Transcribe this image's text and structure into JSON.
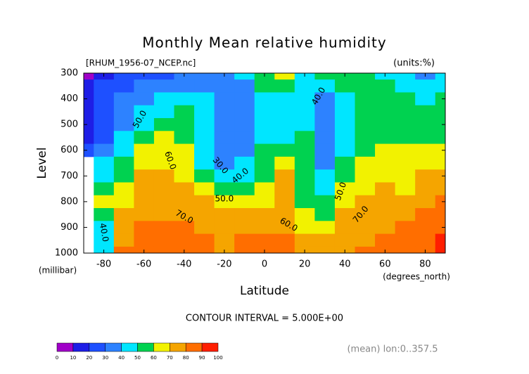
{
  "chart_data": {
    "type": "contour",
    "title": "Monthly Mean relative humidity",
    "subtitle": "[RHUM_1956-07_NCEP.nc]",
    "units": "(units:%)",
    "y_label": "Level",
    "y_unit": "(millibar)",
    "x_label": "Latitude",
    "x_unit": "(degrees_north)",
    "footer": "CONTOUR INTERVAL = 5.000E+00",
    "note": "(mean) lon:0..357.5",
    "x": [
      -90,
      -80,
      -70,
      -60,
      -50,
      -40,
      -30,
      -20,
      -10,
      0,
      10,
      20,
      30,
      40,
      50,
      60,
      70,
      80,
      90
    ],
    "y": [
      300,
      350,
      400,
      450,
      500,
      550,
      600,
      650,
      700,
      750,
      800,
      850,
      900,
      950,
      1000
    ],
    "z": [
      [
        8,
        10,
        20,
        25,
        28,
        32,
        35,
        38,
        42,
        55,
        62,
        48,
        52,
        58,
        58,
        48,
        40,
        35,
        42
      ],
      [
        15,
        22,
        28,
        30,
        35,
        38,
        38,
        35,
        38,
        50,
        55,
        42,
        40,
        52,
        55,
        52,
        48,
        42,
        45
      ],
      [
        18,
        25,
        30,
        35,
        40,
        45,
        42,
        32,
        35,
        48,
        48,
        40,
        35,
        48,
        55,
        55,
        52,
        48,
        52
      ],
      [
        18,
        25,
        33,
        42,
        48,
        50,
        45,
        30,
        33,
        48,
        45,
        42,
        33,
        45,
        55,
        58,
        55,
        55,
        55
      ],
      [
        18,
        25,
        38,
        48,
        55,
        55,
        45,
        30,
        33,
        47,
        45,
        45,
        32,
        42,
        55,
        58,
        57,
        58,
        55
      ],
      [
        18,
        28,
        42,
        55,
        60,
        58,
        45,
        30,
        34,
        48,
        48,
        50,
        33,
        42,
        57,
        58,
        58,
        58,
        58
      ],
      [
        20,
        33,
        46,
        62,
        64,
        60,
        45,
        30,
        36,
        50,
        55,
        55,
        35,
        45,
        58,
        60,
        60,
        62,
        62
      ],
      [
        null,
        40,
        50,
        66,
        68,
        62,
        48,
        32,
        40,
        52,
        62,
        58,
        38,
        50,
        60,
        62,
        63,
        65,
        68
      ],
      [
        null,
        45,
        55,
        70,
        72,
        68,
        55,
        40,
        48,
        55,
        70,
        58,
        40,
        55,
        62,
        65,
        65,
        70,
        72
      ],
      [
        null,
        55,
        62,
        72,
        75,
        72,
        65,
        52,
        55,
        60,
        75,
        58,
        45,
        60,
        65,
        70,
        68,
        74,
        75
      ],
      [
        null,
        60,
        68,
        75,
        76,
        75,
        72,
        65,
        62,
        66,
        76,
        58,
        52,
        65,
        70,
        72,
        72,
        78,
        80
      ],
      [
        null,
        50,
        72,
        78,
        78,
        78,
        75,
        72,
        70,
        72,
        75,
        60,
        58,
        70,
        72,
        75,
        78,
        82,
        84
      ],
      [
        null,
        45,
        75,
        82,
        83,
        82,
        78,
        75,
        75,
        78,
        78,
        65,
        65,
        72,
        75,
        78,
        82,
        85,
        88
      ],
      [
        null,
        40,
        78,
        85,
        88,
        85,
        82,
        78,
        80,
        83,
        82,
        72,
        72,
        75,
        78,
        80,
        85,
        88,
        92
      ],
      [
        null,
        40,
        80,
        85,
        85,
        82,
        80,
        78,
        82,
        85,
        85,
        78,
        75,
        78,
        80,
        82,
        85,
        88,
        95
      ]
    ],
    "xlim": [
      -90,
      90
    ],
    "xticks": [
      -80,
      -60,
      -40,
      -20,
      0,
      20,
      40,
      60,
      80
    ],
    "ylim": [
      1000,
      300
    ],
    "yticks": [
      300,
      400,
      500,
      600,
      700,
      800,
      900,
      1000
    ],
    "contour_labels": [
      "50.0",
      "60.0",
      "70.0",
      "30.0",
      "40.0",
      "50.0",
      "60.0",
      "40.0",
      "50.0",
      "70.0",
      "40.0"
    ],
    "colorbar": {
      "levels": [
        0,
        10,
        20,
        30,
        40,
        50,
        60,
        70,
        80,
        90,
        100
      ],
      "colors": [
        "#a000c8",
        "#1e1ee6",
        "#1e50ff",
        "#2d82ff",
        "#00e6ff",
        "#00d250",
        "#f2f200",
        "#f5a500",
        "#ff6e00",
        "#ff1e00"
      ]
    }
  }
}
